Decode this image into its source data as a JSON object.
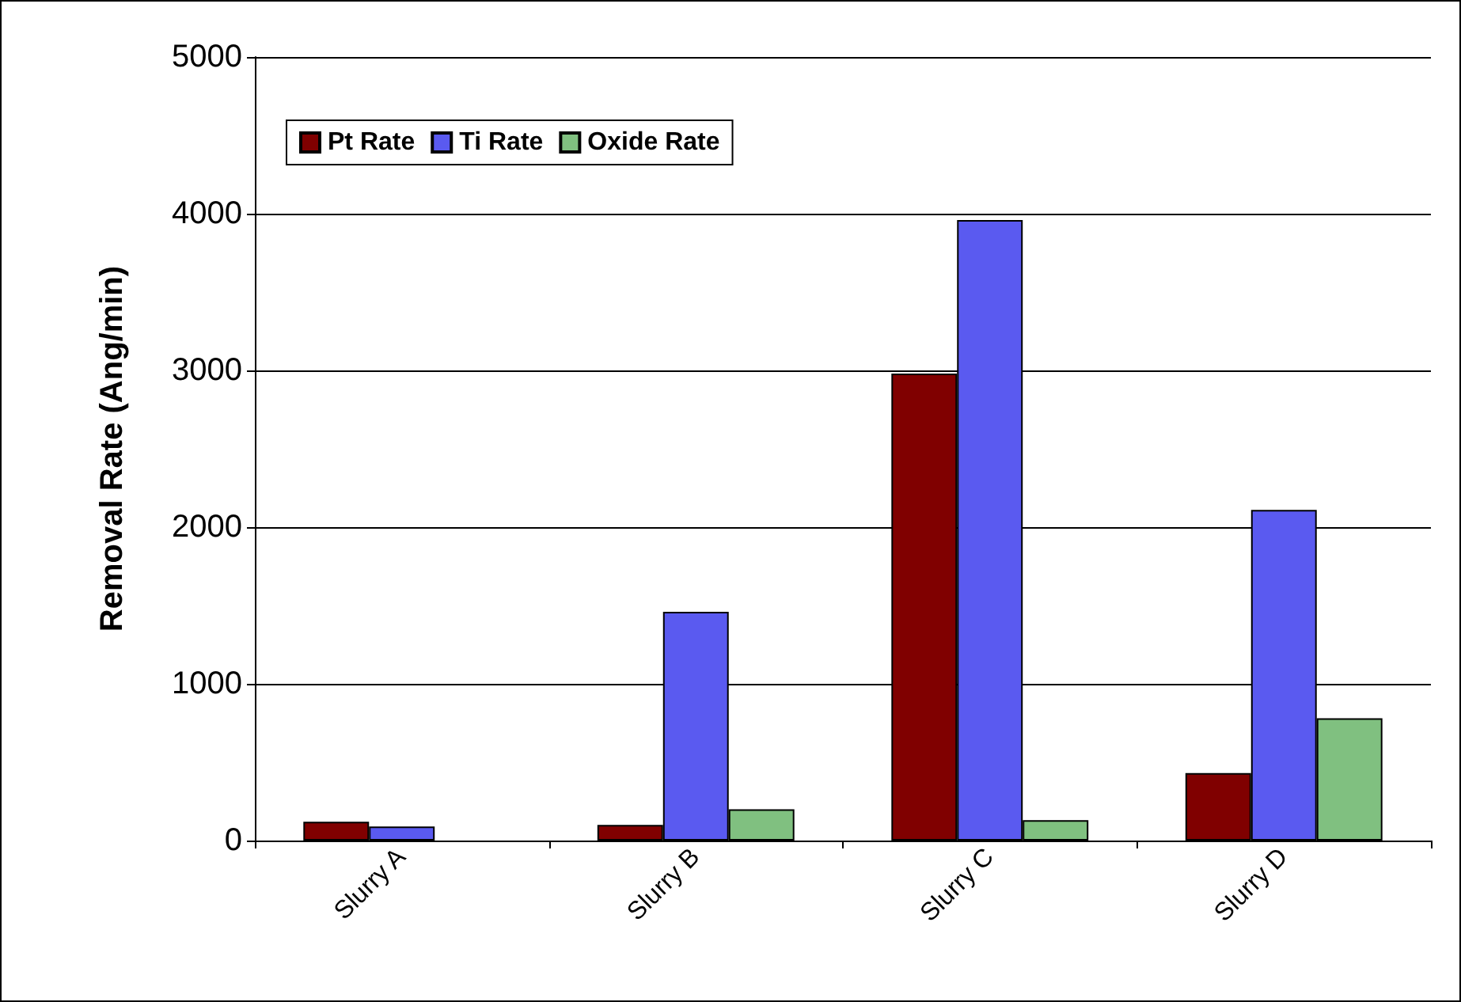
{
  "chart_data": {
    "type": "bar",
    "ylabel": "Removal Rate (Ang/min)",
    "categories": [
      "Slurry A",
      "Slurry B",
      "Slurry C",
      "Slurry D"
    ],
    "series": [
      {
        "name": "Pt Rate",
        "color": "#800000",
        "values": [
          120,
          100,
          2980,
          430
        ]
      },
      {
        "name": "Ti Rate",
        "color": "#5a5af0",
        "values": [
          90,
          1460,
          3960,
          2110
        ]
      },
      {
        "name": "Oxide Rate",
        "color": "#80c080",
        "values": [
          null,
          200,
          130,
          780
        ]
      }
    ],
    "ylim": [
      0,
      5000
    ],
    "yticks": [
      0,
      1000,
      2000,
      3000,
      4000,
      5000
    ],
    "grid": "y",
    "legend": "top left"
  }
}
